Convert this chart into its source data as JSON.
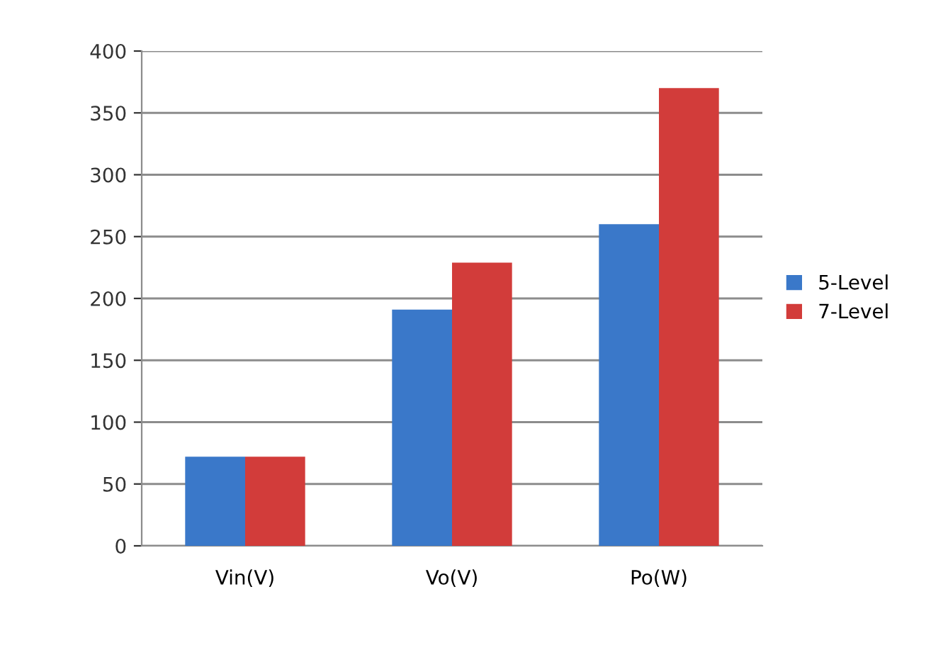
{
  "chart_data": {
    "type": "bar",
    "categories": [
      "Vin(V)",
      "Vo(V)",
      "Po(W)"
    ],
    "series": [
      {
        "name": "5-Level",
        "color": "#3a78c9",
        "values": [
          72,
          191,
          260
        ]
      },
      {
        "name": "7-Level",
        "color": "#d23c3a",
        "values": [
          72,
          229,
          370
        ]
      }
    ],
    "ylim": [
      0,
      400
    ],
    "yticks": [
      0,
      50,
      100,
      150,
      200,
      250,
      300,
      350,
      400
    ],
    "grid": "y",
    "legend": "right"
  }
}
